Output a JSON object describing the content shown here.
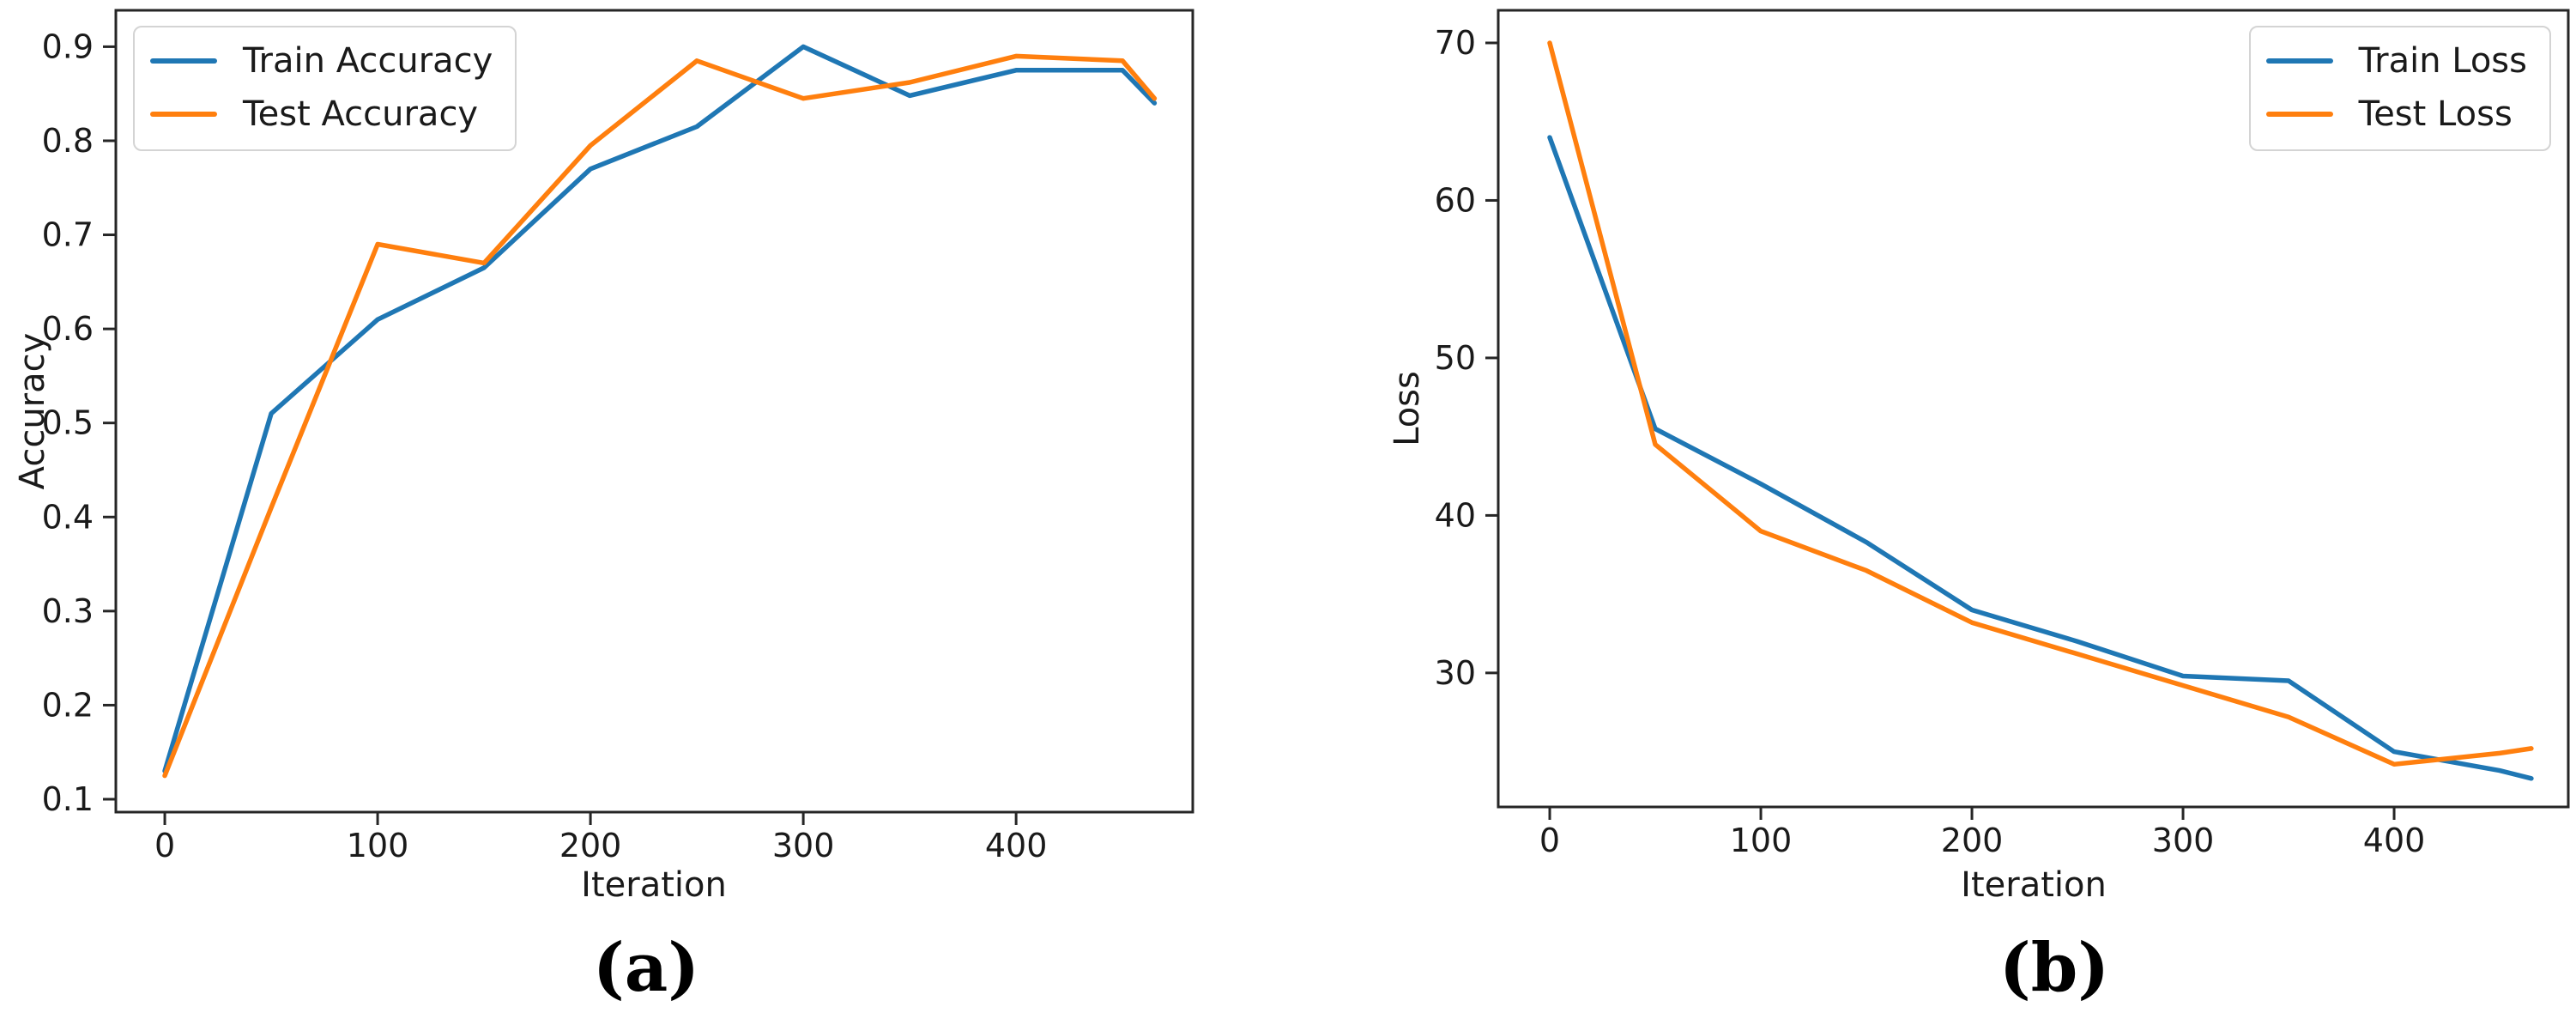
{
  "figure": {
    "background": "#ffffff",
    "text_color": "#1a1a1a",
    "spine_color": "#262626"
  },
  "chart_data": [
    {
      "panel": "a",
      "caption": "(a)",
      "type": "line",
      "title": "",
      "xlabel": "Iteration",
      "ylabel": "Accuracy",
      "grid": false,
      "legend_position": "upper left",
      "x": [
        0,
        50,
        100,
        150,
        200,
        250,
        300,
        350,
        400,
        450,
        465
      ],
      "series": [
        {
          "name": "Train Accuracy",
          "color": "#1f77b4",
          "values": [
            0.13,
            0.51,
            0.61,
            0.665,
            0.77,
            0.815,
            0.9,
            0.848,
            0.875,
            0.875,
            0.84
          ]
        },
        {
          "name": "Test Accuracy",
          "color": "#ff7f0e",
          "values": [
            0.125,
            0.41,
            0.69,
            0.67,
            0.795,
            0.885,
            0.845,
            0.862,
            0.89,
            0.885,
            0.845
          ]
        }
      ],
      "xticks": [
        0,
        100,
        200,
        300,
        400
      ],
      "yticks": [
        0.1,
        0.2,
        0.3,
        0.4,
        0.5,
        0.6,
        0.7,
        0.8,
        0.9
      ],
      "ytick_labels": [
        "0.1",
        "0.2",
        "0.3",
        "0.4",
        "0.5",
        "0.6",
        "0.7",
        "0.8",
        "0.9"
      ],
      "xlim": [
        -23,
        483
      ],
      "ylim": [
        0.0863,
        0.9387
      ]
    },
    {
      "panel": "b",
      "caption": "(b)",
      "type": "line",
      "title": "",
      "xlabel": "Iteration",
      "ylabel": "Loss",
      "grid": false,
      "legend_position": "upper right",
      "x": [
        0,
        50,
        100,
        150,
        200,
        250,
        300,
        350,
        400,
        450,
        465
      ],
      "series": [
        {
          "name": "Train Loss",
          "color": "#1f77b4",
          "values": [
            64,
            45.5,
            42,
            38.3,
            34,
            32,
            29.8,
            29.5,
            25,
            23.8,
            23.3
          ]
        },
        {
          "name": "Test Loss",
          "color": "#ff7f0e",
          "values": [
            70,
            44.5,
            39,
            36.5,
            33.2,
            31.2,
            29.2,
            27.2,
            24.2,
            24.9,
            25.2
          ]
        }
      ],
      "xticks": [
        0,
        100,
        200,
        300,
        400
      ],
      "yticks": [
        30,
        40,
        50,
        60,
        70
      ],
      "ytick_labels": [
        "30",
        "40",
        "50",
        "60",
        "70"
      ],
      "xlim": [
        -24.4,
        482.5
      ],
      "ylim": [
        21.49,
        72.07
      ]
    }
  ]
}
